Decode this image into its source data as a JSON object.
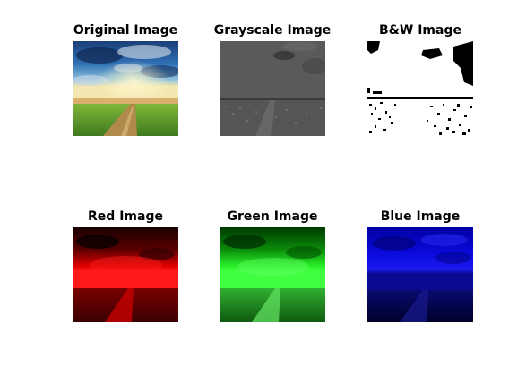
{
  "panels": [
    {
      "title": "Original Image",
      "kind": "original"
    },
    {
      "title": "Grayscale Image",
      "kind": "grayscale"
    },
    {
      "title": "B&W Image",
      "kind": "bw"
    },
    {
      "title": "Red Image",
      "kind": "red"
    },
    {
      "title": "Green Image",
      "kind": "green"
    },
    {
      "title": "Blue Image",
      "kind": "blue"
    }
  ],
  "colors": {
    "background": "#ffffff",
    "title_text": "#000000",
    "red_channel": "#ff0000",
    "green_channel": "#00ff00",
    "blue_channel": "#0000ff",
    "grayscale_tone": "#5a5a5a",
    "sky_blue": "#1f5fa8",
    "field_green": "#5c9a2a",
    "path_brown": "#b08a4a"
  }
}
